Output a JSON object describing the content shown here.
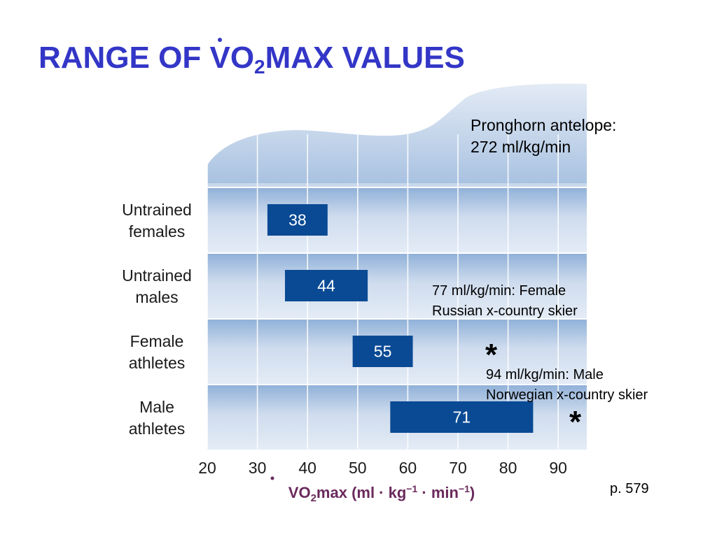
{
  "slide": {
    "title_prefix": "RANGE OF ",
    "title_v": "V",
    "title_o": "O",
    "title_sub": "2",
    "title_suffix": "MAX VALUES"
  },
  "notes": {
    "pronghorn_line1": "Pronghorn antelope:",
    "pronghorn_line2": "272 ml/kg/min",
    "female_skier_line1": "77 ml/kg/min: Female",
    "female_skier_line2": "Russian x-country skier",
    "male_skier_line1": "94 ml/kg/min: Male",
    "male_skier_line2": "Norwegian x-country skier",
    "asterisk": "*"
  },
  "page_ref": "p. 579",
  "colors": {
    "title": "#3336c6",
    "bar": "#0a4a94",
    "bar_text": "#ffffff",
    "axis_label": "#6b2a5c",
    "band_light": "#dce7f4",
    "band_dark": "#8fb0d8"
  },
  "chart_data": {
    "type": "bar",
    "orientation": "horizontal",
    "categories": [
      [
        "Untrained",
        "females"
      ],
      [
        "Untrained",
        "males"
      ],
      [
        "Female",
        "athletes"
      ],
      [
        "Male",
        "athletes"
      ]
    ],
    "series": [
      {
        "values": [
          38,
          44,
          55,
          71
        ],
        "ranges": [
          [
            32,
            44
          ],
          [
            35.5,
            52
          ],
          [
            49,
            61
          ],
          [
            56.5,
            85
          ]
        ]
      }
    ],
    "xlim": [
      20,
      95
    ],
    "xticks": [
      20,
      30,
      40,
      50,
      60,
      70,
      80,
      90
    ],
    "xlabel": "V̇O2max (ml · kg−1 · min−1)",
    "xlabel_parts": {
      "v": "V",
      "o": "O",
      "sub": "2",
      "rest1": "max (ml · kg",
      "sup1": "−1",
      "rest2": " · min",
      "sup2": "−1",
      "rest3": ")"
    },
    "grid": true
  }
}
